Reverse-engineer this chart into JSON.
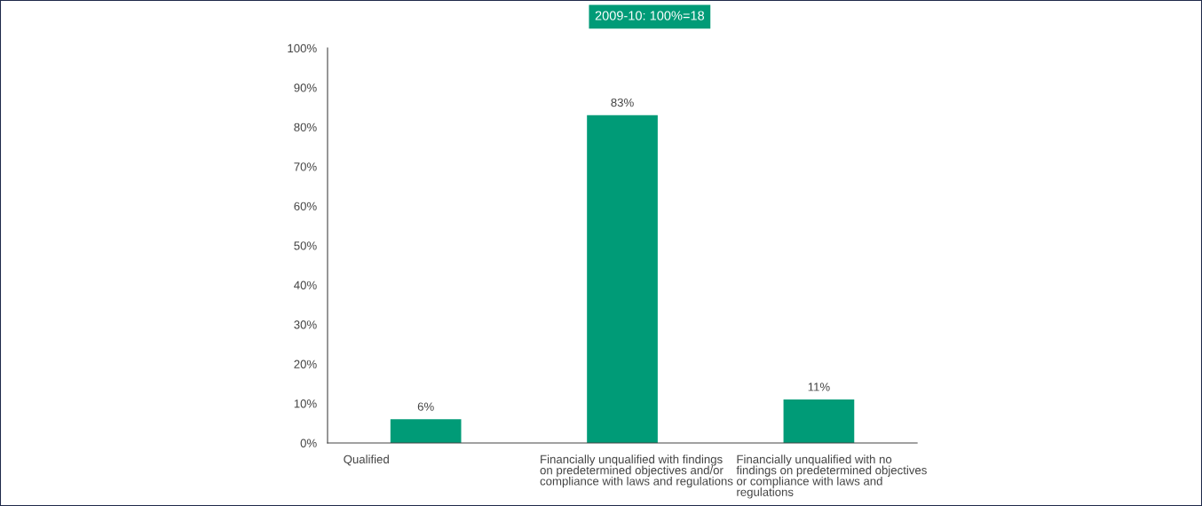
{
  "chart_data": {
    "type": "bar",
    "title": "2009-10: 100%=18",
    "categories": [
      "Qualified",
      "Financially unqualified with findings\non predetermined objectives and/or\ncompliance with laws and regulations",
      "Financially unqualified with no\nfindings on predetermined objectives\nor compliance with laws and\nregulations"
    ],
    "values": [
      6,
      83,
      11
    ],
    "value_labels": [
      "6%",
      "83%",
      "11%"
    ],
    "color": "#009b77",
    "ylim": [
      0,
      100
    ],
    "yticks": [
      {
        "value": 0,
        "label": "0%"
      },
      {
        "value": 10,
        "label": "10%"
      },
      {
        "value": 20,
        "label": "20%"
      },
      {
        "value": 30,
        "label": "30%"
      },
      {
        "value": 40,
        "label": "40%"
      },
      {
        "value": 50,
        "label": "50%"
      },
      {
        "value": 60,
        "label": "60%"
      },
      {
        "value": 70,
        "label": "70%"
      },
      {
        "value": 80,
        "label": "80%"
      },
      {
        "value": 90,
        "label": "90%"
      },
      {
        "value": 100,
        "label": "100%"
      }
    ],
    "grid": false,
    "legend": false
  }
}
